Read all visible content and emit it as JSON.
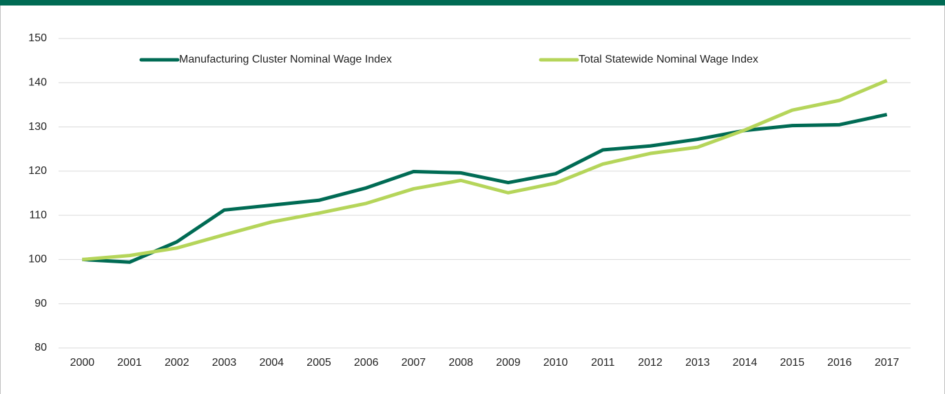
{
  "chart_data": {
    "type": "line",
    "categories": [
      "2000",
      "2001",
      "2002",
      "2003",
      "2004",
      "2005",
      "2006",
      "2007",
      "2008",
      "2009",
      "2010",
      "2011",
      "2012",
      "2013",
      "2014",
      "2015",
      "2016",
      "2017"
    ],
    "series": [
      {
        "name": "Manufacturing Cluster Nominal Wage Index",
        "color": "#006b54",
        "values": [
          100,
          99.4,
          104,
          111.2,
          112.3,
          113.4,
          116.2,
          119.9,
          119.6,
          117.4,
          119.4,
          124.8,
          125.7,
          127.2,
          129.2,
          130.3,
          130.5,
          132.8
        ]
      },
      {
        "name": "Total Statewide Nominal Wage Index",
        "color": "#b5d55a",
        "values": [
          100,
          100.9,
          102.6,
          105.6,
          108.5,
          110.5,
          112.7,
          116,
          117.9,
          115.1,
          117.3,
          121.6,
          124,
          125.4,
          129.3,
          133.8,
          136,
          140.5
        ]
      }
    ],
    "ylim": [
      80,
      150
    ],
    "yticks": [
      80,
      90,
      100,
      110,
      120,
      130,
      140,
      150
    ],
    "grid": true,
    "legend": "top"
  }
}
